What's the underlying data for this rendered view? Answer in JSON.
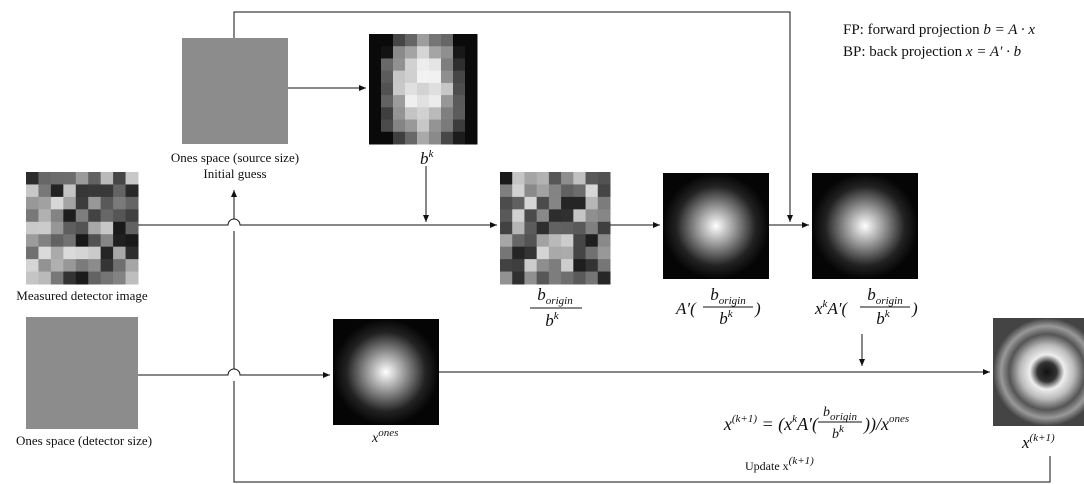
{
  "legend": {
    "fp_label": "FP: forward projection",
    "fp_formula": "b = A · x",
    "bp_label": "BP: back projection",
    "bp_formula": "x = A′ · b"
  },
  "nodes": {
    "ones_source": {
      "label": "Ones space (source size)",
      "sublabel": "Initial guess"
    },
    "bk": {
      "base": "b",
      "sup": "k"
    },
    "measured": {
      "label": "Measured detector image"
    },
    "ratio": {
      "num": "b",
      "num_sub": "origin",
      "den": "b",
      "den_sup": "k"
    },
    "backproj": {
      "prefix": "A′(",
      "num": "b",
      "num_sub": "origin",
      "den": "b",
      "den_sup": "k",
      "suffix": ")"
    },
    "product": {
      "x": "x",
      "x_sup": "k",
      "prefix": "A′(",
      "num": "b",
      "num_sub": "origin",
      "den": "b",
      "den_sup": "k",
      "suffix": ")"
    },
    "ones_detector": {
      "label": "Ones space (detector size)"
    },
    "x_ones": {
      "base": "x",
      "sup": "ones"
    },
    "x_next": {
      "base": "x",
      "sup": "(k+1)"
    }
  },
  "equation": {
    "lhs": "x",
    "lhs_sup": "(k+1)",
    "eq": " = (x",
    "x_sup": "k",
    "a": "A′(",
    "num": "b",
    "num_sub": "origin",
    "den": "b",
    "den_sup": "k",
    "close": "))/x",
    "ones_sup": "ones"
  },
  "update": {
    "label": "Update x",
    "sup": "(k+1)"
  }
}
